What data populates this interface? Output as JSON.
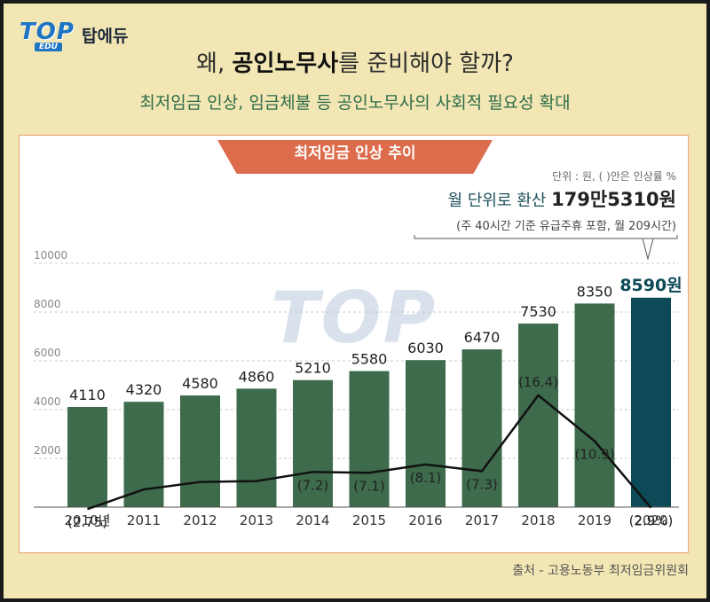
{
  "header": {
    "brand_logo": "TOP",
    "brand_logo_sub": "EDU",
    "brand_name": "탑에듀",
    "title_pre": "왜, ",
    "title_bold": "공인노무사",
    "title_post": "를 준비해야 할까?",
    "subtitle": "최저임금 인상, 임금체불 등 공인노무사의 사회적 필요성 확대"
  },
  "chart_banner": "최저임금 인상 추이",
  "unit_note": "단위 : 원, ( )안은 인상률 %",
  "monthly_label": "월 단위로 환산 ",
  "monthly_value": "179만5310원",
  "monthly_basis": "(주 40시간 기준 유급주휴 포함, 월 209시간)",
  "source": "출처 - 고용노동부 최저임금위원회",
  "colors": {
    "bar": "#3d6b4c",
    "bar_highlight": "#0b4a56",
    "line": "#111111",
    "banner": "#dd6c4c"
  },
  "chart_data": {
    "type": "bar",
    "categories": [
      "2010년",
      "2011",
      "2012",
      "2013",
      "2014",
      "2015",
      "2016",
      "2017",
      "2018",
      "2019",
      "2020"
    ],
    "values": [
      4110,
      4320,
      4580,
      4860,
      5210,
      5580,
      6030,
      6470,
      7530,
      8350,
      8590
    ],
    "value_labels": [
      "4110",
      "4320",
      "4580",
      "4860",
      "5210",
      "5580",
      "6030",
      "6470",
      "7530",
      "8350",
      "8590원"
    ],
    "yticks": [
      "2000",
      "4000",
      "6000",
      "8000",
      "10000"
    ],
    "ylim": [
      0,
      10000
    ],
    "line_series": {
      "values": [
        2.75,
        5.1,
        6.0,
        6.1,
        7.2,
        7.1,
        8.1,
        7.3,
        16.4,
        10.9,
        2.9
      ],
      "labels": [
        "(2.75)",
        "",
        "",
        "",
        "(7.2)",
        "(7.1)",
        "(8.1)",
        "(7.3)",
        "(16.4)",
        "(10.9)",
        "(2.9%)"
      ]
    },
    "highlight_index": 10,
    "grid": true
  }
}
